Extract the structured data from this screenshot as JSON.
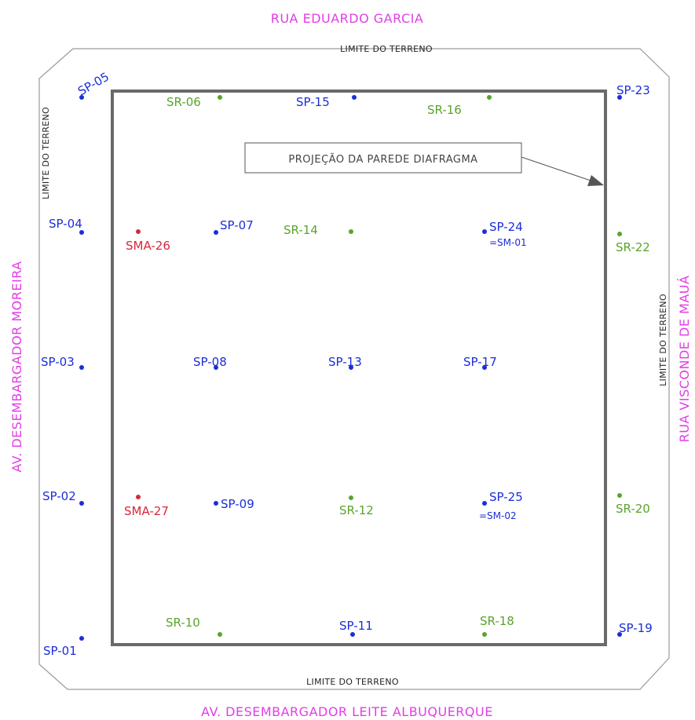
{
  "streets": {
    "top": "RUA EDUARDO GARCIA",
    "bottom": "AV. DESEMBARGADOR LEITE ALBUQUERQUE",
    "left": "AV. DESEMBARGADOR MOREIRA",
    "right": "RUA VISCONDE DE MAUÁ"
  },
  "property_limit": {
    "top": "LIMITE DO TERRENO",
    "bottom": "LIMITE DO TERRENO",
    "left": "LIMITE DO TERRENO",
    "right": "LIMITE DO TERRENO"
  },
  "callout": {
    "text": "PROJEÇÃO DA PAREDE DIAFRAGMA"
  },
  "colors": {
    "sp": "#1c2ed8",
    "sr": "#5aa42a",
    "sma": "#d8283c",
    "street": "#e23ee6",
    "wall": "#6a6a6a",
    "limit": "#9a9a9a"
  },
  "points": [
    {
      "id": "SP-05",
      "type": "sp"
    },
    {
      "id": "SR-06",
      "type": "sr"
    },
    {
      "id": "SP-15",
      "type": "sp"
    },
    {
      "id": "SR-16",
      "type": "sr"
    },
    {
      "id": "SP-23",
      "type": "sp"
    },
    {
      "id": "SP-04",
      "type": "sp"
    },
    {
      "id": "SMA-26",
      "type": "sma"
    },
    {
      "id": "SP-07",
      "type": "sp"
    },
    {
      "id": "SR-14",
      "type": "sr"
    },
    {
      "id": "SP-24",
      "sub": "=SM-01",
      "type": "sp"
    },
    {
      "id": "SR-22",
      "type": "sr"
    },
    {
      "id": "SP-03",
      "type": "sp"
    },
    {
      "id": "SP-08",
      "type": "sp"
    },
    {
      "id": "SP-13",
      "type": "sp"
    },
    {
      "id": "SP-17",
      "type": "sp"
    },
    {
      "id": "SP-02",
      "type": "sp"
    },
    {
      "id": "SMA-27",
      "type": "sma"
    },
    {
      "id": "SP-09",
      "type": "sp"
    },
    {
      "id": "SR-12",
      "type": "sr"
    },
    {
      "id": "SP-25",
      "sub": "=SM-02",
      "type": "sp"
    },
    {
      "id": "SR-20",
      "type": "sr"
    },
    {
      "id": "SP-01",
      "type": "sp"
    },
    {
      "id": "SR-10",
      "type": "sr"
    },
    {
      "id": "SP-11",
      "type": "sp"
    },
    {
      "id": "SR-18",
      "type": "sr"
    },
    {
      "id": "SP-19",
      "type": "sp"
    }
  ]
}
